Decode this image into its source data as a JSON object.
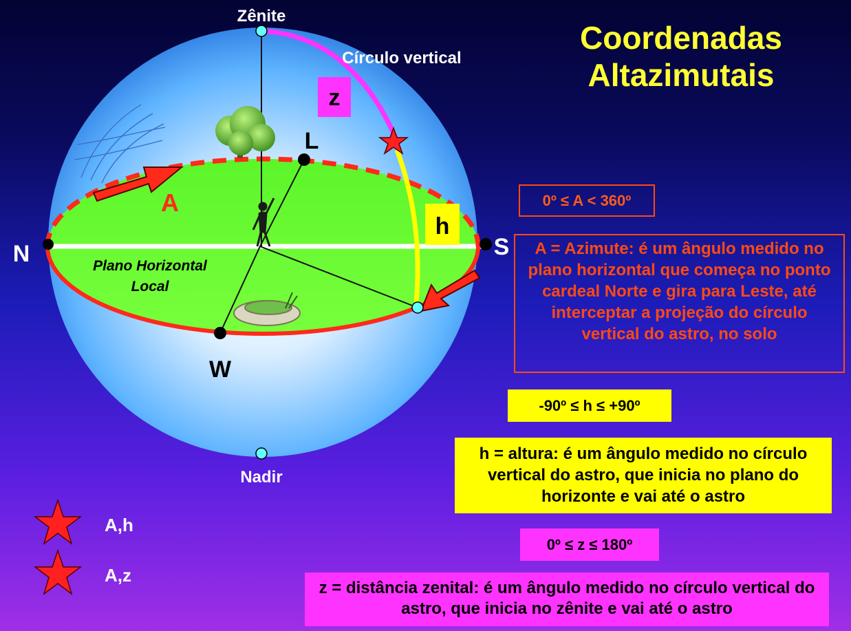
{
  "title": {
    "line1": "Coordenadas",
    "line2": "Altazimutais"
  },
  "sphere": {
    "zenith": "Zênite",
    "nadir": "Nadir",
    "vertical_circle": "Círculo vertical",
    "north": "N",
    "south": "S",
    "east": "L",
    "west": "W",
    "plane_line1": "Plano Horizontal",
    "plane_line2": "Local",
    "azimuth_symbol": "A",
    "altitude_symbol": "h",
    "zenith_symbol": "z"
  },
  "legend": [
    {
      "label": "A,h"
    },
    {
      "label": "A,z"
    }
  ],
  "boxes": {
    "range_a": "0º ≤ A < 360º",
    "desc_a": "A = Azimute: é um ângulo medido no plano horizontal que começa no ponto cardeal Norte e gira para Leste, até interceptar a projeção do círculo vertical do astro, no solo",
    "range_h": "-90º  ≤ h  ≤ +90º",
    "desc_h": "h = altura: é um ângulo medido no círculo vertical do astro, que inicia no plano do horizonte e vai até o astro",
    "range_z": "0º ≤ z  ≤ 180º",
    "desc_z": "z = distância zenital: é um ângulo medido no círculo vertical do astro, que inicia no zênite e vai até o astro"
  },
  "colors": {
    "azimuth": "#ff2a1a",
    "altitude": "#ffff00",
    "zenith_distance": "#ff33ff",
    "plane": "#66ff33",
    "sphere": "#4aa8f0"
  }
}
